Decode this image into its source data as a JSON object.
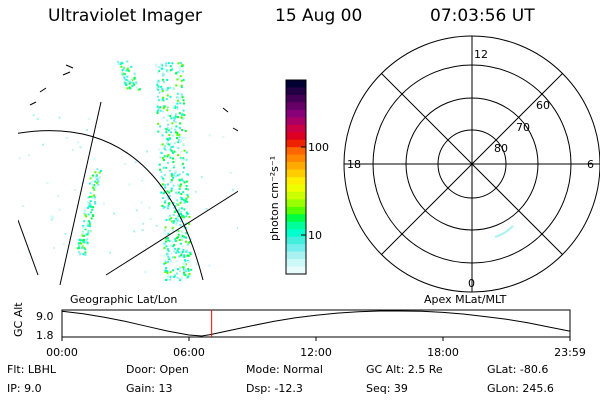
{
  "header": {
    "title": "Ultraviolet Imager",
    "date": "15 Aug 00",
    "time": "07:03:56 UT"
  },
  "colorbar": {
    "label": "photon cm⁻²s⁻¹",
    "ticks": [
      "100",
      "10"
    ],
    "colors": [
      "#000033",
      "#220044",
      "#440055",
      "#660066",
      "#880077",
      "#aa0066",
      "#cc0044",
      "#dd0022",
      "#ee2200",
      "#ff6600",
      "#ff8800",
      "#ffaa00",
      "#ffcc00",
      "#ffee00",
      "#eeff00",
      "#ccff00",
      "#99ff00",
      "#55ff00",
      "#00ff44",
      "#00ff99",
      "#00ffcc",
      "#44eedd",
      "#77eeee",
      "#aaf2f2",
      "#ccf8f8",
      "#e8fcfc"
    ]
  },
  "polar": {
    "mlt_labels": {
      "top": "12",
      "left": "18",
      "right": "6",
      "bottom": "0"
    },
    "lat_labels": [
      "60",
      "70",
      "80"
    ]
  },
  "panel_labels": {
    "left": "Geographic Lat/Lon",
    "right": "Apex MLat/MLT"
  },
  "chart_data": {
    "type": "line",
    "title": "",
    "ylabel": "GC Alt",
    "yticks": [
      "9.0",
      "1.8"
    ],
    "ylim": [
      1.8,
      9.0
    ],
    "xlim": [
      0,
      24
    ],
    "xticks": [
      "00:00",
      "06:00",
      "12:00",
      "18:00",
      "23:59"
    ],
    "current_time_marker": 7.07,
    "series": [
      {
        "x": [
          0,
          1,
          2,
          3,
          4,
          5,
          6,
          6.6,
          7,
          8,
          9,
          10,
          11,
          12,
          13,
          14,
          15,
          16,
          17,
          18,
          19,
          20,
          21,
          22,
          23,
          23.98
        ],
        "y": [
          8.9,
          8.2,
          7.2,
          6.0,
          4.6,
          3.2,
          2.1,
          1.8,
          2.2,
          3.5,
          4.8,
          6.0,
          7.0,
          7.8,
          8.4,
          8.8,
          9.0,
          9.0,
          8.9,
          8.6,
          8.1,
          7.4,
          6.6,
          5.6,
          4.4,
          3.2
        ]
      }
    ]
  },
  "status": {
    "flt": "Flt: LBHL",
    "ip": "IP:  9.0",
    "door": "Door: Open",
    "gain": "Gain: 13",
    "mode": "Mode: Normal",
    "dsp": "Dsp:   -12.3",
    "gcalt": "GC Alt: 2.5 Re",
    "seq": "Seq: 39",
    "glat": "GLat: -80.6",
    "glon": "GLon: 245.6"
  }
}
